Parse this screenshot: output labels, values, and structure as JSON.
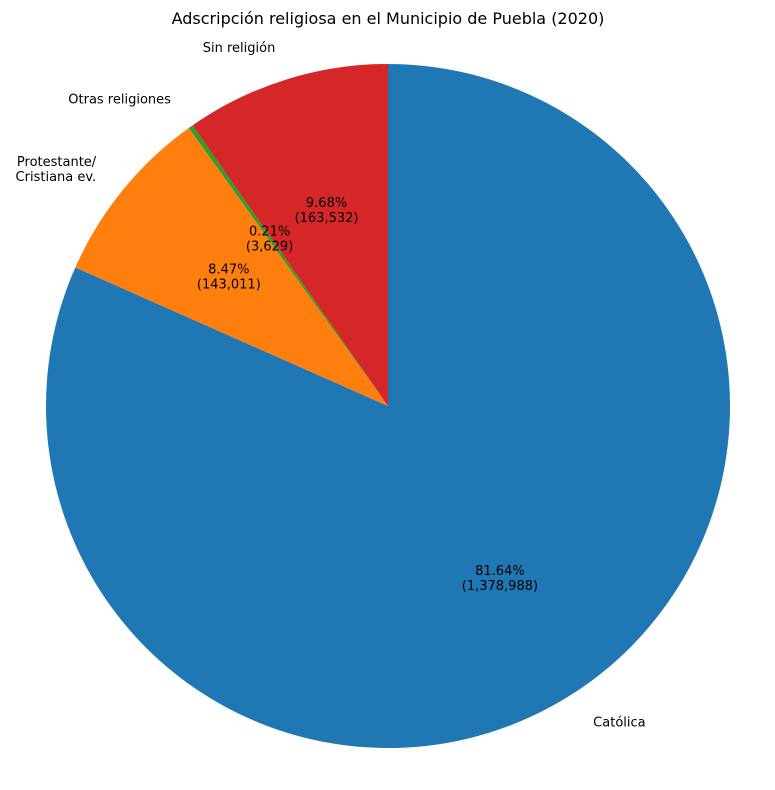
{
  "chart_data": {
    "type": "pie",
    "title": "Adscripción religiosa en el Municipio de Puebla (2020)",
    "start_angle_deg": 90,
    "direction": "clockwise",
    "slices": [
      {
        "label": "Católica",
        "value": 1378988,
        "pct_label": "81.64%",
        "count_label": "(1,378,988)",
        "color": "#1f77b4"
      },
      {
        "label": "Protestante/\nCristiana ev.",
        "value": 143011,
        "pct_label": "8.47%",
        "count_label": "(143,011)",
        "color": "#ff7f0e"
      },
      {
        "label": "Otras religiones",
        "value": 3629,
        "pct_label": "0.21%",
        "count_label": "(3,629)",
        "color": "#2ca02c"
      },
      {
        "label": "Sin religión",
        "value": 163532,
        "pct_label": "9.68%",
        "count_label": "(163,532)",
        "color": "#d62728"
      }
    ]
  }
}
